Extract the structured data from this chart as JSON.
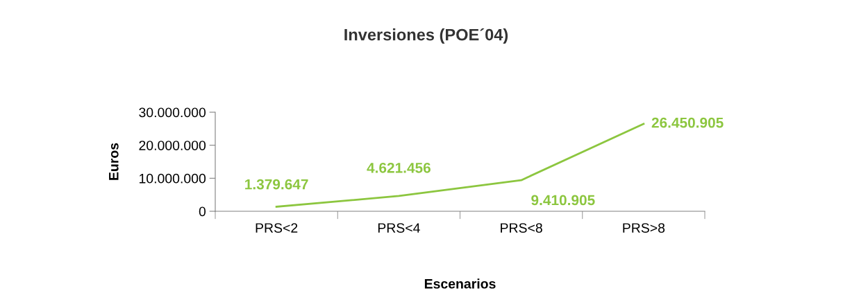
{
  "chart_data": {
    "type": "line",
    "title": "Inversiones (POE´04)",
    "xlabel": "Escenarios",
    "ylabel": "Euros",
    "categories": [
      "PRS<2",
      "PRS<4",
      "PRS<8",
      "PRS>8"
    ],
    "series": [
      {
        "color": "#8cc63f",
        "values": [
          1379647,
          4621456,
          9410905,
          26450905
        ],
        "value_labels": [
          "1.379.647",
          "4.621.456",
          "9.410.905",
          "26.450.905"
        ]
      }
    ],
    "ylim": [
      0,
      30000000
    ],
    "yticks": [
      0,
      {
        "value": 10000000,
        "label": "10.000.000"
      },
      {
        "value": 20000000,
        "label": "20.000.000"
      },
      {
        "value": 30000000,
        "label": "30.000.000"
      }
    ],
    "grid": false,
    "legend": false,
    "marker": "none",
    "line_style": "solid"
  }
}
